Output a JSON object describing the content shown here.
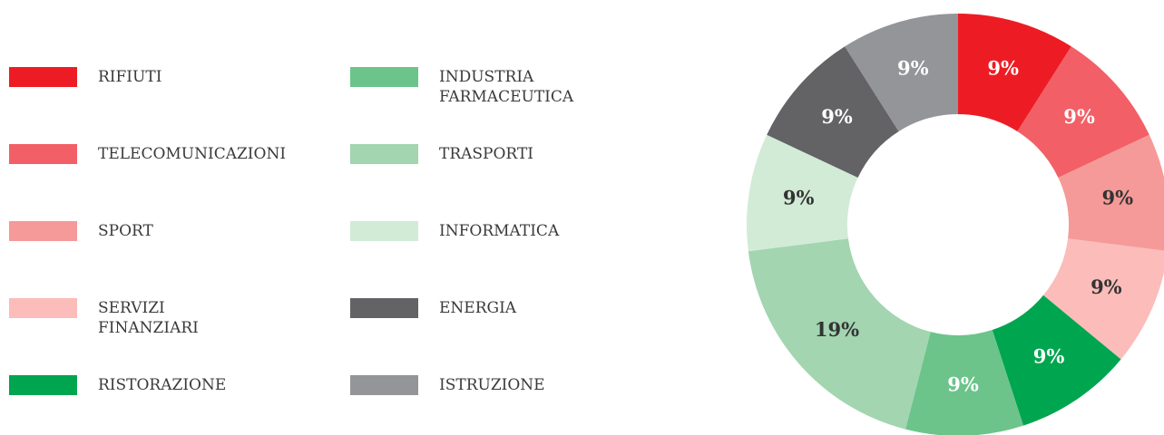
{
  "chart_data": {
    "type": "donut",
    "categories": [
      "RIFIUTI",
      "TELECOMUNICAZIONI",
      "SPORT",
      "SERVIZI FINANZIARI",
      "RISTORAZIONE",
      "INDUSTRIA FARMACEUTICA",
      "TRASPORTI",
      "INFORMATICA",
      "ENERGIA",
      "ISTRUZIONE"
    ],
    "values": [
      9,
      9,
      9,
      9,
      9,
      9,
      19,
      9,
      9,
      9
    ],
    "value_labels": [
      "9%",
      "9%",
      "9%",
      "9%",
      "9%",
      "9%",
      "19%",
      "9%",
      "9%",
      "9%"
    ],
    "colors": [
      "#ed1c24",
      "#f25f67",
      "#f59a98",
      "#fbbcba",
      "#00a54f",
      "#6cc48b",
      "#a2d5b0",
      "#d2ebd6",
      "#636265",
      "#939598"
    ],
    "legend": "left"
  }
}
